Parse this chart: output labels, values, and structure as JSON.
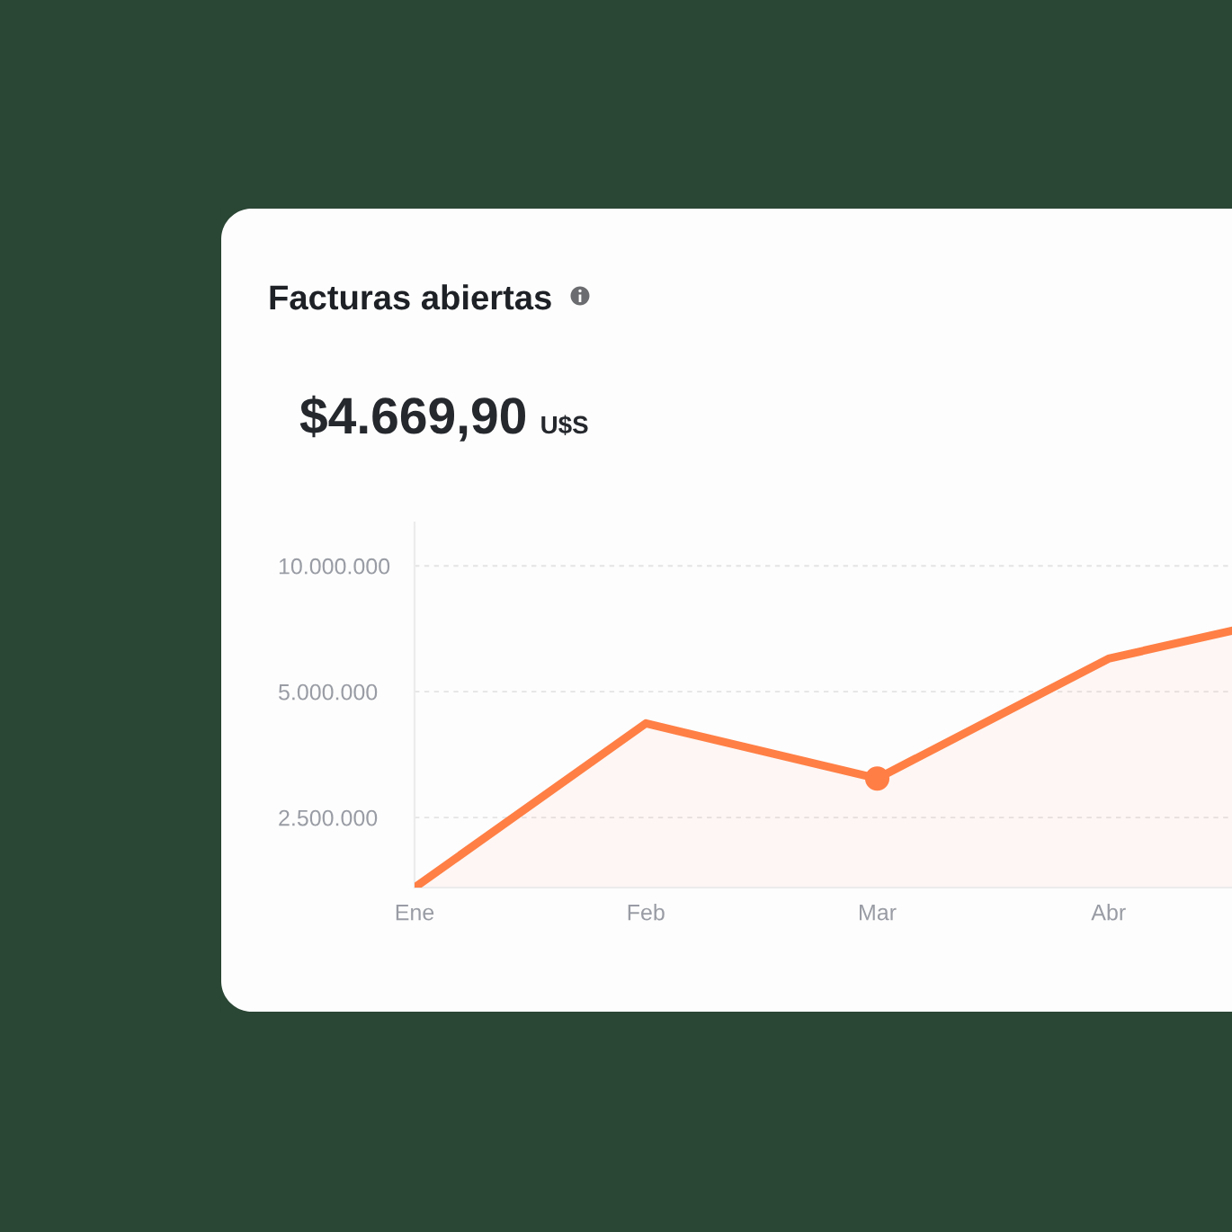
{
  "chart_data": {
    "type": "area",
    "title": "Facturas abiertas",
    "subtitle": "$4.669,90",
    "annotations": [
      "U$S"
    ],
    "categories": [
      "Ene",
      "Feb",
      "Mar",
      "Abr",
      null
    ],
    "series": [
      {
        "color": "#ff7f45",
        "values": [
          1700000,
          4200000,
          3100000,
          6000000,
          8000000
        ]
      },
      {
        "type": "scatter",
        "color": "#ff7e46",
        "marker": "circle",
        "x": [
          "Mar"
        ],
        "values": [
          3100000
        ]
      }
    ],
    "log": "y",
    "ylim": [
      1700000,
      12700000
    ],
    "yticks": [
      {
        "value": 2500000,
        "label": "2.500.000"
      },
      {
        "value": 5000000,
        "label": "5.000.000"
      },
      {
        "value": 10000000,
        "label": "10.000.000"
      }
    ],
    "grid": "y"
  }
}
